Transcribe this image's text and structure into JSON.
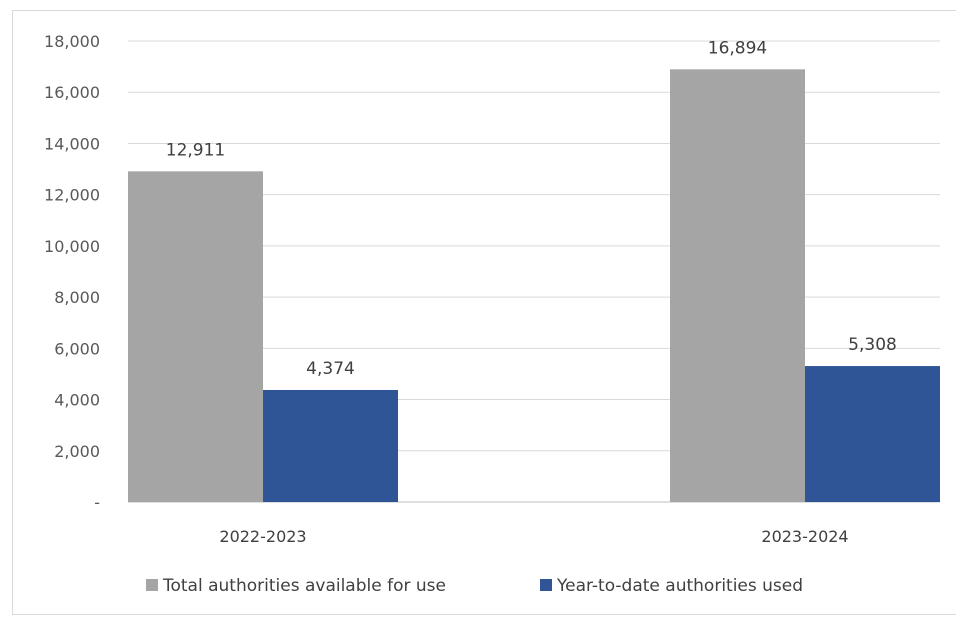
{
  "chart_data": {
    "type": "bar",
    "title": "",
    "xlabel": "",
    "ylabel": "",
    "categories": [
      "2022-2023",
      "2023-2024"
    ],
    "series": [
      {
        "name": "Total authorities available for use",
        "values": [
          12911,
          16894
        ],
        "labels": [
          "12,911",
          "16,894"
        ],
        "color": "#a5a5a5"
      },
      {
        "name": "Year-to-date authorities used",
        "values": [
          4374,
          5308
        ],
        "labels": [
          "4,374",
          "5,308"
        ],
        "color": "#2f5597"
      }
    ],
    "ylim": [
      0,
      18000
    ],
    "yticks": [
      0,
      2000,
      4000,
      6000,
      8000,
      10000,
      12000,
      14000,
      16000,
      18000
    ],
    "ytick_labels": [
      "-",
      "2,000",
      "4,000",
      "6,000",
      "8,000",
      "10,000",
      "12,000",
      "14,000",
      "16,000",
      "18,000"
    ],
    "grid": true,
    "legend": "bottom"
  }
}
